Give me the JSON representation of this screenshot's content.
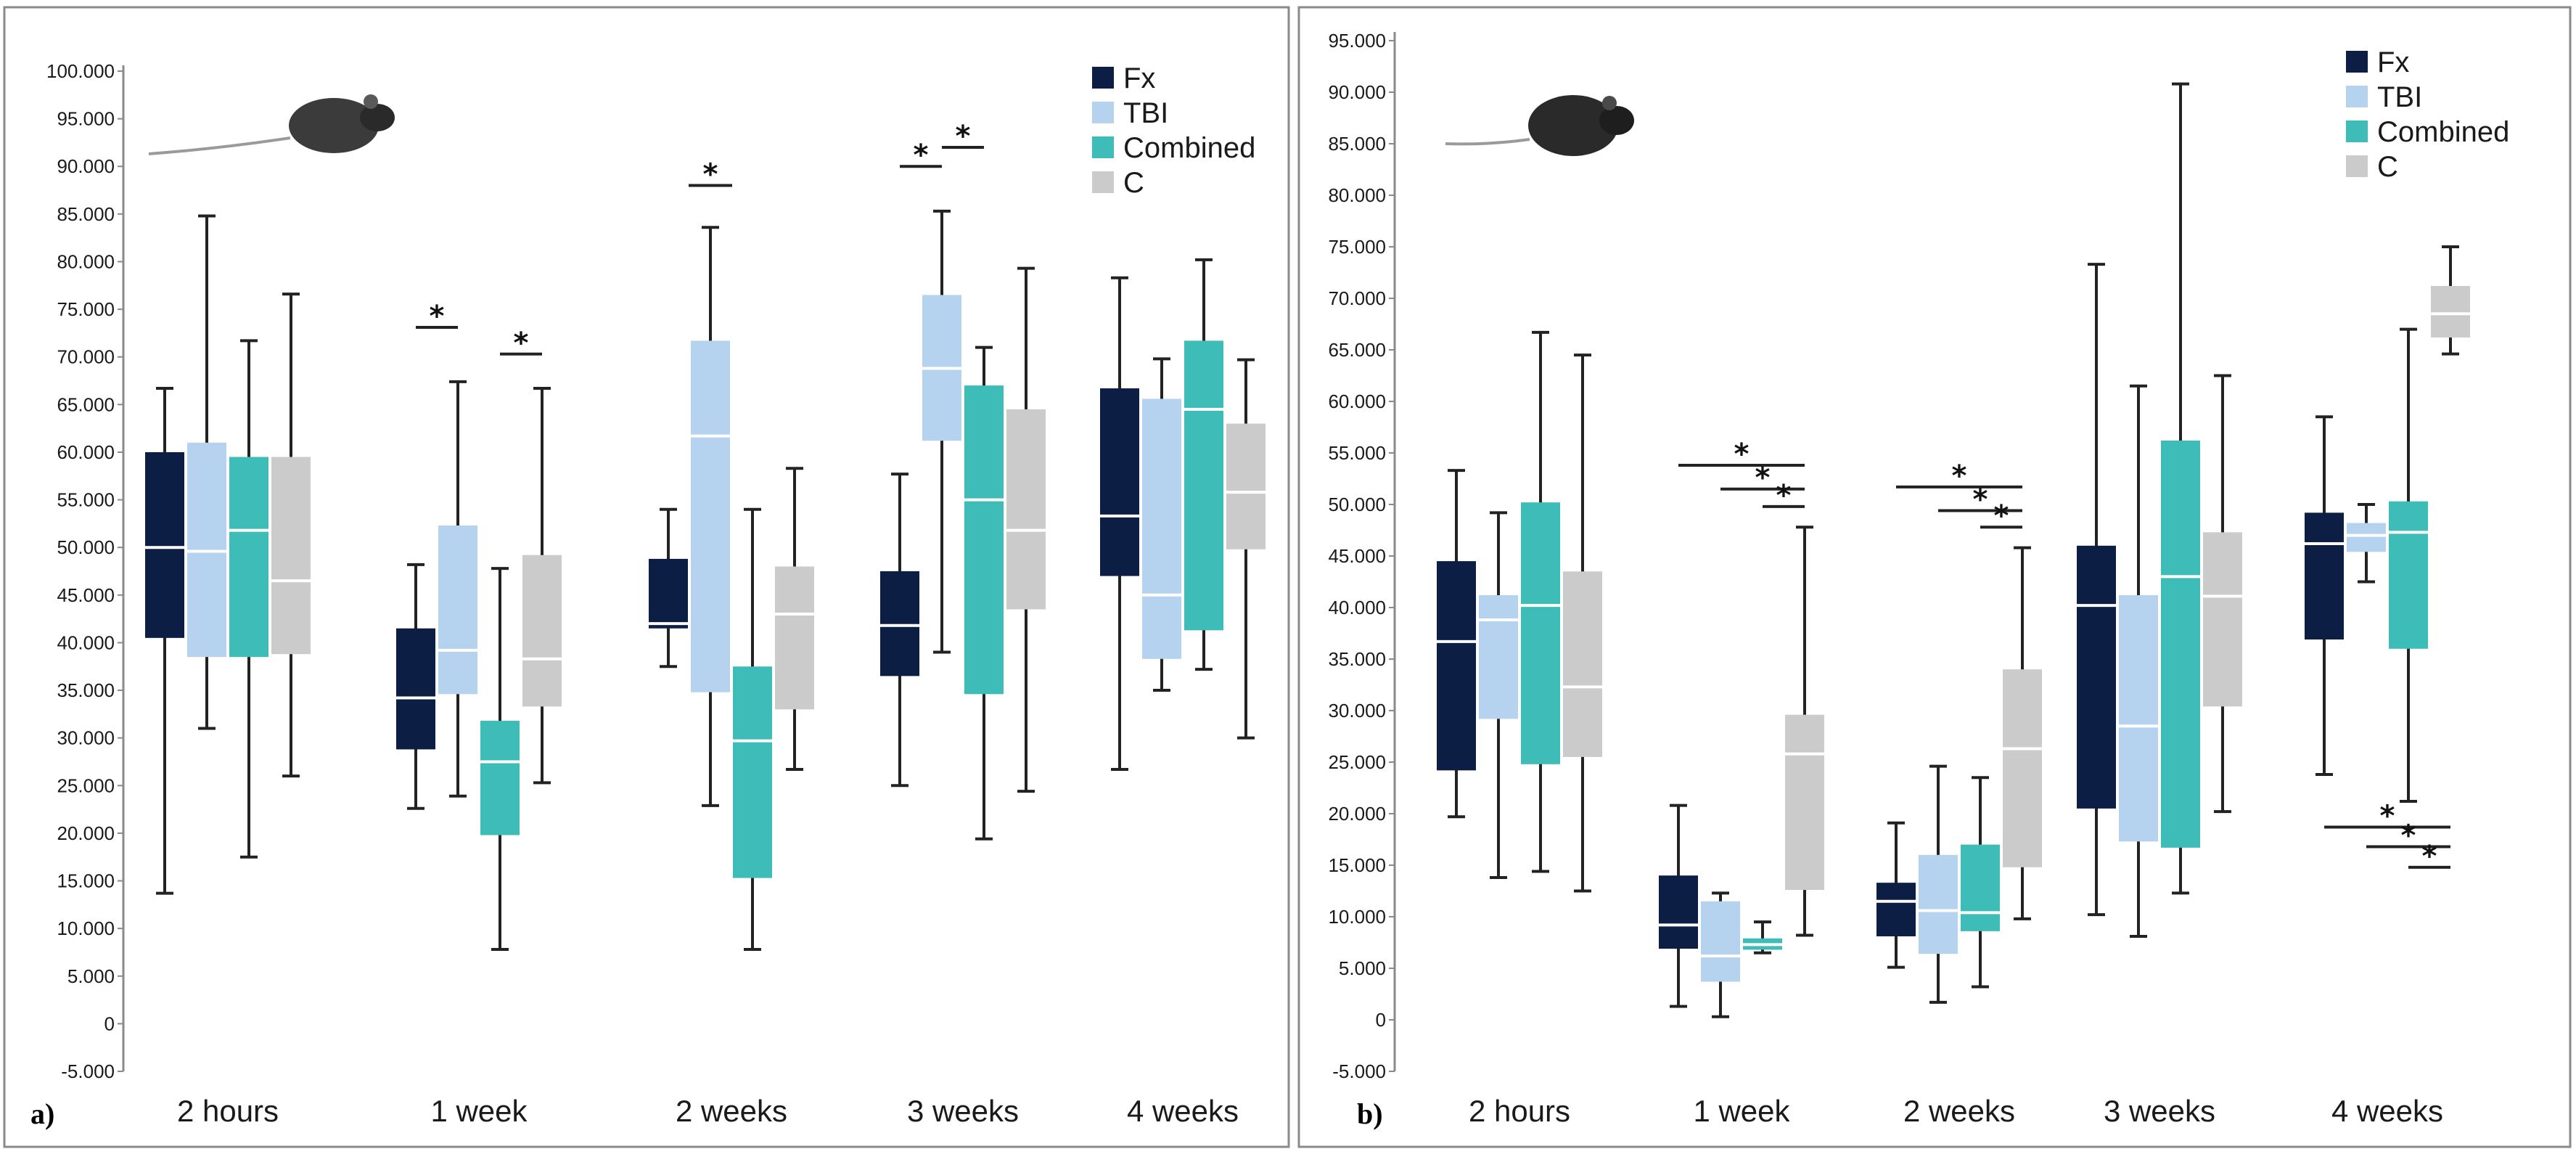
{
  "colors": {
    "Fx": "#0d1e45",
    "TBI": "#b5d2ee",
    "Combined": "#3dbcb8",
    "C": "#cbcbcb"
  },
  "chart_data": [
    {
      "panel_label": "a)",
      "type": "box",
      "title": "",
      "xlabel": "",
      "ylabel": "",
      "ylim": [
        -5000,
        100000
      ],
      "y_ticks": [
        {
          "value": 100000,
          "label": "100.000"
        },
        {
          "value": 95000,
          "label": "95.000"
        },
        {
          "value": 90000,
          "label": "90.000"
        },
        {
          "value": 85000,
          "label": "85.000"
        },
        {
          "value": 80000,
          "label": "80.000"
        },
        {
          "value": 75000,
          "label": "75.000"
        },
        {
          "value": 70000,
          "label": "70.000"
        },
        {
          "value": 65000,
          "label": "65.000"
        },
        {
          "value": 60000,
          "label": "60.000"
        },
        {
          "value": 55000,
          "label": "55.000"
        },
        {
          "value": 50000,
          "label": "50.000"
        },
        {
          "value": 45000,
          "label": "45.000"
        },
        {
          "value": 40000,
          "label": "40.000"
        },
        {
          "value": 35000,
          "label": "35.000"
        },
        {
          "value": 30000,
          "label": "30.000"
        },
        {
          "value": 25000,
          "label": "25.000"
        },
        {
          "value": 20000,
          "label": "20.000"
        },
        {
          "value": 15000,
          "label": "15.000"
        },
        {
          "value": 10000,
          "label": "10.000"
        },
        {
          "value": 5000,
          "label": "5.000"
        },
        {
          "value": 0,
          "label": "0"
        },
        {
          "value": -5000,
          "label": "-5.000"
        }
      ],
      "categories": [
        "2 hours",
        "1 week",
        "2 weeks",
        "3 weeks",
        "4 weeks"
      ],
      "legend": {
        "position": "top-right",
        "entries": [
          "Fx",
          "TBI",
          "Combined",
          "C"
        ]
      },
      "series": [
        {
          "name": "Fx",
          "boxes": [
            {
              "min": 13700,
              "q1": 40500,
              "median": 50000,
              "q3": 60000,
              "max": 66700
            },
            {
              "min": 22600,
              "q1": 28800,
              "median": 34200,
              "q3": 41500,
              "max": 48200
            },
            {
              "min": 37500,
              "q1": 41500,
              "median": 42000,
              "q3": 48800,
              "max": 54000
            },
            {
              "min": 25000,
              "q1": 36500,
              "median": 41800,
              "q3": 47500,
              "max": 57700
            },
            {
              "min": 26700,
              "q1": 47000,
              "median": 53300,
              "q3": 66700,
              "max": 78300
            }
          ]
        },
        {
          "name": "TBI",
          "boxes": [
            {
              "min": 31000,
              "q1": 38500,
              "median": 49600,
              "q3": 61000,
              "max": 84800
            },
            {
              "min": 23900,
              "q1": 34600,
              "median": 39200,
              "q3": 52300,
              "max": 67400
            },
            {
              "min": 22900,
              "q1": 34800,
              "median": 61700,
              "q3": 71700,
              "max": 83600
            },
            {
              "min": 39000,
              "q1": 61200,
              "median": 68800,
              "q3": 76500,
              "max": 85300
            },
            {
              "min": 35000,
              "q1": 38300,
              "median": 45000,
              "q3": 65600,
              "max": 69800
            }
          ]
        },
        {
          "name": "Combined",
          "boxes": [
            {
              "min": 17500,
              "q1": 38500,
              "median": 51800,
              "q3": 59500,
              "max": 71700
            },
            {
              "min": 7800,
              "q1": 19800,
              "median": 27500,
              "q3": 31800,
              "max": 47800
            },
            {
              "min": 7800,
              "q1": 15300,
              "median": 29700,
              "q3": 37500,
              "max": 54000
            },
            {
              "min": 19400,
              "q1": 34600,
              "median": 55000,
              "q3": 67000,
              "max": 71000
            },
            {
              "min": 37200,
              "q1": 41300,
              "median": 64500,
              "q3": 71700,
              "max": 80200
            }
          ]
        },
        {
          "name": "C",
          "boxes": [
            {
              "min": 26000,
              "q1": 38800,
              "median": 46500,
              "q3": 59500,
              "max": 76600
            },
            {
              "min": 25300,
              "q1": 33300,
              "median": 38300,
              "q3": 49200,
              "max": 66700
            },
            {
              "min": 26700,
              "q1": 33000,
              "median": 43000,
              "q3": 48000,
              "max": 58300
            },
            {
              "min": 24400,
              "q1": 43500,
              "median": 51800,
              "q3": 64500,
              "max": 79300
            },
            {
              "min": 30000,
              "q1": 49800,
              "median": 55800,
              "q3": 63000,
              "max": 69700
            }
          ]
        }
      ],
      "significance": [
        {
          "category": "1 week",
          "from": "TBI",
          "to": "Fx",
          "level": 73100,
          "label": "*"
        },
        {
          "category": "1 week",
          "from": "Combined",
          "to": "C",
          "level": 70300,
          "label": "*"
        },
        {
          "category": "2 weeks",
          "from": "TBI",
          "to": "TBI",
          "level": 88000,
          "label": "*"
        },
        {
          "category": "3 weeks",
          "from": "Fx",
          "to": "TBI",
          "level": 90000,
          "label": "*"
        },
        {
          "category": "3 weeks",
          "from": "TBI",
          "to": "Combined",
          "level": 92000,
          "label": "*"
        }
      ]
    },
    {
      "panel_label": "b)",
      "type": "box",
      "title": "",
      "xlabel": "",
      "ylabel": "",
      "ylim": [
        -5000,
        95000
      ],
      "y_ticks": [
        {
          "value": 95000,
          "label": "95.000"
        },
        {
          "value": 90000,
          "label": "90.000"
        },
        {
          "value": 85000,
          "label": "85.000"
        },
        {
          "value": 80000,
          "label": "80.000"
        },
        {
          "value": 75000,
          "label": "75.000"
        },
        {
          "value": 70000,
          "label": "70.000"
        },
        {
          "value": 65000,
          "label": "65.000"
        },
        {
          "value": 60000,
          "label": "60.000"
        },
        {
          "value": 55000,
          "label": "55.000"
        },
        {
          "value": 50000,
          "label": "50.000"
        },
        {
          "value": 45000,
          "label": "45.000"
        },
        {
          "value": 40000,
          "label": "40.000"
        },
        {
          "value": 35000,
          "label": "35.000"
        },
        {
          "value": 30000,
          "label": "30.000"
        },
        {
          "value": 25000,
          "label": "25.000"
        },
        {
          "value": 20000,
          "label": "20.000"
        },
        {
          "value": 15000,
          "label": "15.000"
        },
        {
          "value": 10000,
          "label": "10.000"
        },
        {
          "value": 5000,
          "label": "5.000"
        },
        {
          "value": 0,
          "label": "0"
        },
        {
          "value": -5000,
          "label": "-5.000"
        }
      ],
      "categories": [
        "2 hours",
        "1 week",
        "2 weeks",
        "3 weeks",
        "4 weeks"
      ],
      "legend": {
        "position": "top-right",
        "entries": [
          "Fx",
          "TBI",
          "Combined",
          "C"
        ]
      },
      "series": [
        {
          "name": "Fx",
          "boxes": [
            {
              "min": 19700,
              "q1": 24200,
              "median": 36700,
              "q3": 44500,
              "max": 53300
            },
            {
              "min": 1300,
              "q1": 6900,
              "median": 9200,
              "q3": 14000,
              "max": 20800
            },
            {
              "min": 5100,
              "q1": 8100,
              "median": 11500,
              "q3": 13300,
              "max": 19100
            },
            {
              "min": 10200,
              "q1": 20500,
              "median": 40200,
              "q3": 46000,
              "max": 73300
            },
            {
              "min": 23800,
              "q1": 36900,
              "median": 46200,
              "q3": 49200,
              "max": 58500
            }
          ]
        },
        {
          "name": "TBI",
          "boxes": [
            {
              "min": 13800,
              "q1": 29200,
              "median": 38800,
              "q3": 41200,
              "max": 49200
            },
            {
              "min": 300,
              "q1": 3700,
              "median": 6200,
              "q3": 11500,
              "max": 12300
            },
            {
              "min": 1700,
              "q1": 6400,
              "median": 10600,
              "q3": 16000,
              "max": 24600
            },
            {
              "min": 8100,
              "q1": 17300,
              "median": 28500,
              "q3": 41200,
              "max": 61500
            },
            {
              "min": 42500,
              "q1": 45400,
              "median": 47000,
              "q3": 48200,
              "max": 50000
            }
          ]
        },
        {
          "name": "Combined",
          "boxes": [
            {
              "min": 14400,
              "q1": 24800,
              "median": 40200,
              "q3": 50200,
              "max": 66700
            },
            {
              "min": 6500,
              "q1": 6800,
              "median": 7300,
              "q3": 7900,
              "max": 9500
            },
            {
              "min": 3200,
              "q1": 8600,
              "median": 10400,
              "q3": 17000,
              "max": 23500
            },
            {
              "min": 12300,
              "q1": 16700,
              "median": 43000,
              "q3": 56200,
              "max": 90800
            },
            {
              "min": 21200,
              "q1": 36000,
              "median": 47300,
              "q3": 50300,
              "max": 67000
            }
          ]
        },
        {
          "name": "C",
          "boxes": [
            {
              "min": 12500,
              "q1": 25500,
              "median": 32300,
              "q3": 43500,
              "max": 64500
            },
            {
              "min": 8200,
              "q1": 12600,
              "median": 25800,
              "q3": 29600,
              "max": 47800
            },
            {
              "min": 9800,
              "q1": 14800,
              "median": 26300,
              "q3": 34000,
              "max": 45800
            },
            {
              "min": 20200,
              "q1": 30400,
              "median": 41100,
              "q3": 47300,
              "max": 62500
            },
            {
              "min": 64600,
              "q1": 66200,
              "median": 68500,
              "q3": 71200,
              "max": 75000
            }
          ]
        }
      ],
      "significance": [
        {
          "category": "1 week",
          "from": "Fx",
          "to": "C",
          "level": 53800,
          "label": "*"
        },
        {
          "category": "1 week",
          "from": "TBI",
          "to": "C",
          "level": 51500,
          "label": "*"
        },
        {
          "category": "1 week",
          "from": "Combined",
          "to": "C",
          "level": 49800,
          "label": "*"
        },
        {
          "category": "2 weeks",
          "from": "Fx",
          "to": "C",
          "level": 51700,
          "label": "*"
        },
        {
          "category": "2 weeks",
          "from": "TBI",
          "to": "C",
          "level": 49400,
          "label": "*"
        },
        {
          "category": "2 weeks",
          "from": "Combined",
          "to": "C",
          "level": 47800,
          "label": "*"
        },
        {
          "category": "4 weeks",
          "from": "Fx",
          "to": "C",
          "level": 18700,
          "label": "*"
        },
        {
          "category": "4 weeks",
          "from": "TBI",
          "to": "C",
          "level": 16800,
          "label": "*"
        },
        {
          "category": "4 weeks",
          "from": "Combined",
          "to": "C",
          "level": 14800,
          "label": "*"
        }
      ]
    }
  ]
}
